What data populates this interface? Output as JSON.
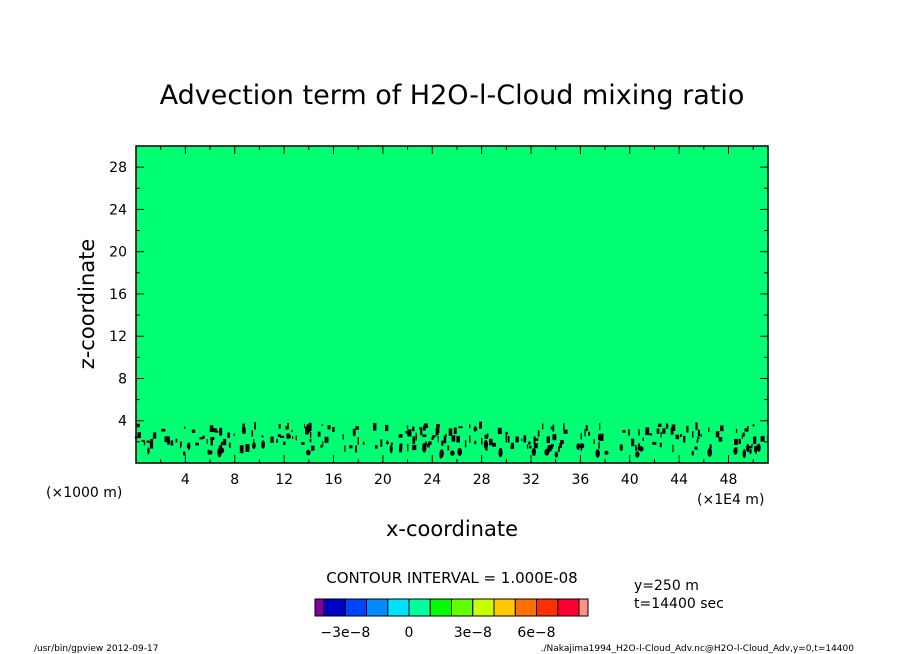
{
  "chart_data": {
    "type": "heatmap",
    "title": "Advection term of H2O-l-Cloud mixing ratio",
    "xlabel": "x-coordinate",
    "ylabel": "z-coordinate",
    "x_unit_left": "(×1000 m)",
    "x_unit_right": "(×1E4 m)",
    "xlim": [
      0,
      51.2
    ],
    "ylim": [
      0,
      30
    ],
    "x_ticks": [
      4,
      8,
      12,
      16,
      20,
      24,
      28,
      32,
      36,
      40,
      44,
      48
    ],
    "x_tick_labels": [
      "4",
      "8",
      "12",
      "16",
      "20",
      "24",
      "28",
      "32",
      "36",
      "40",
      "44",
      "48"
    ],
    "y_ticks": [
      4,
      8,
      12,
      16,
      20,
      24,
      28
    ],
    "y_tick_labels": [
      "4",
      "8",
      "12",
      "16",
      "20",
      "24",
      "28"
    ],
    "field_background_color": "#00ff73",
    "field_description_value": 0,
    "cloud_layer_z_range": [
      0.5,
      3.8
    ],
    "contour_interval_label": "CONTOUR INTERVAL = 1.000E-08",
    "colorbar": {
      "colors": [
        "#8000a0",
        "#0000c8",
        "#0044ff",
        "#008cff",
        "#00e1ff",
        "#00ff9a",
        "#00ff00",
        "#64ff00",
        "#c8ff00",
        "#ffc800",
        "#ff7000",
        "#ff3000",
        "#ff0030",
        "#ff9090"
      ],
      "tick_labels": [
        "−3e−8",
        "0",
        "3e−8",
        "6e−8"
      ]
    },
    "annotations": [
      "y=250 m",
      "t=14400 sec"
    ],
    "footer_left": "/usr/bin/gpview   2012-09-17",
    "footer_right": "./Nakajima1994_H2O-l-Cloud_Adv.nc@H2O-l-Cloud_Adv,y=0,t=14400"
  }
}
